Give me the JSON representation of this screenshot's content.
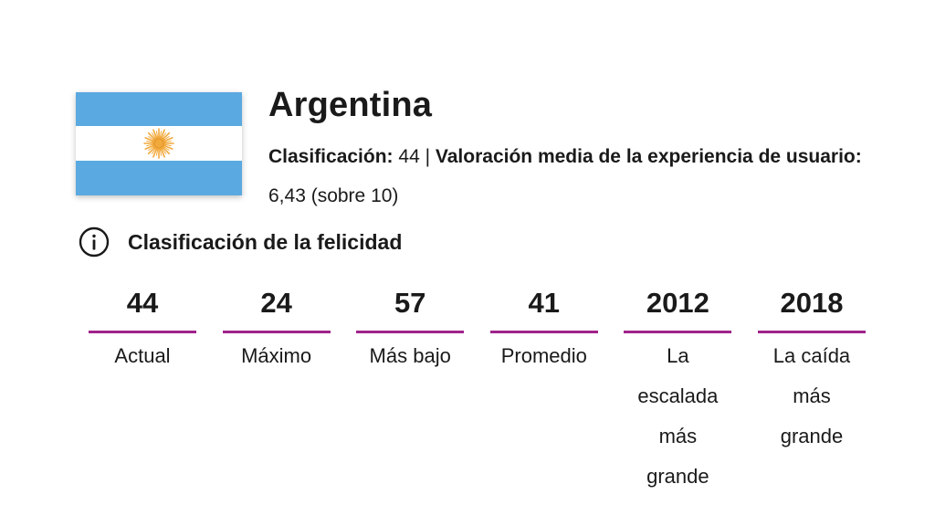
{
  "country": {
    "name": "Argentina",
    "flag": {
      "icon": "argentina-flag-icon",
      "stripe_color": "#5aa9e0",
      "sun_color": "#f2a93b"
    }
  },
  "summary": {
    "rank_label": "Clasificación:",
    "rank_value": "44",
    "separator": "|",
    "rating_label": "Valoración media de la experiencia de usuario:",
    "rating_value": "6,43 (sobre 10)"
  },
  "section": {
    "icon": "info-icon",
    "title": "Clasificación de la felicidad"
  },
  "accent_color": "#a0238c",
  "stats": [
    {
      "value": "44",
      "label": "Actual"
    },
    {
      "value": "24",
      "label": "Máximo"
    },
    {
      "value": "57",
      "label": "Más bajo"
    },
    {
      "value": "41",
      "label": "Promedio"
    },
    {
      "value": "2012",
      "label": "La escalada más grande"
    },
    {
      "value": "2018",
      "label": "La caída más grande"
    }
  ]
}
